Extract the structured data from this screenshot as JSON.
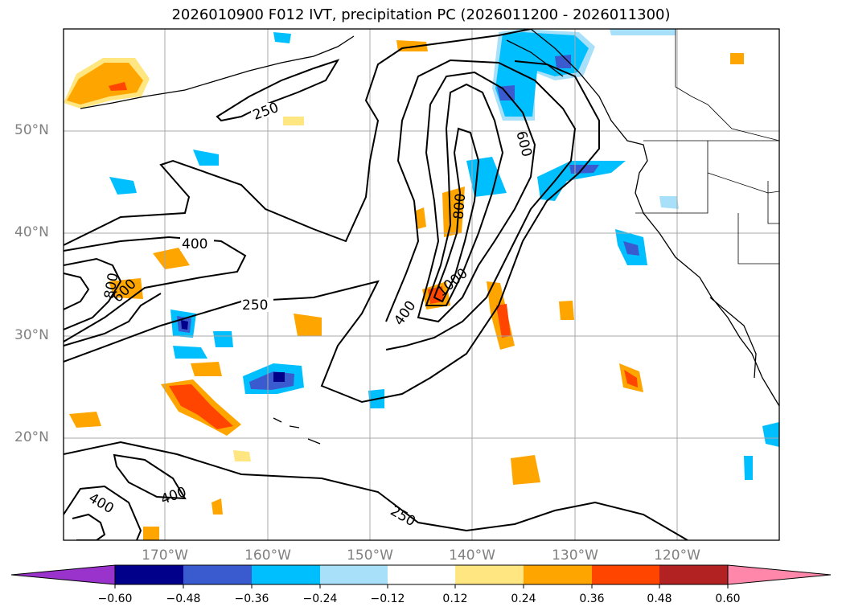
{
  "title": "2026010900 F012 IVT, precipitation PC (2026011200 - 2026011300)",
  "latitude_labels": [
    "50°N",
    "40°N",
    "30°N",
    "20°N"
  ],
  "longitude_labels": [
    "170°W",
    "160°W",
    "150°W",
    "140°W",
    "130°W",
    "120°W"
  ],
  "ivt_contour_labels": [
    "250",
    "400",
    "600",
    "800",
    "1000"
  ],
  "colorbar": {
    "ticks": [
      "−0.60",
      "−0.48",
      "−0.36",
      "−0.24",
      "−0.12",
      "0.12",
      "0.24",
      "0.36",
      "0.48",
      "0.60"
    ],
    "under_color": "#9933cc",
    "bins": [
      "#00008b",
      "#3a5bd0",
      "#00bfff",
      "#a8e0fa",
      "#ffffff",
      "#ffe680",
      "#ffa500",
      "#ff4500",
      "#b22222"
    ],
    "over_color": "#ff88aa"
  }
}
